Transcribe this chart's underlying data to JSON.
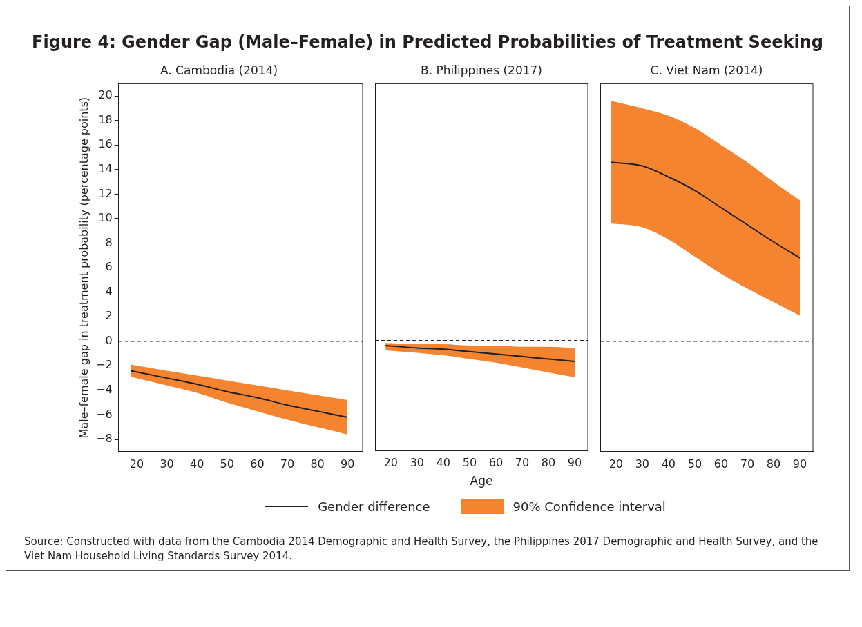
{
  "chart_data": [
    {
      "type": "line",
      "title": "A. Cambodia (2014)",
      "ylabel": "Male–female gap in treatment probability (percentage points)",
      "x": [
        18,
        30,
        40,
        50,
        60,
        70,
        80,
        90
      ],
      "xlim": [
        14,
        95
      ],
      "xticks": [
        20,
        30,
        40,
        50,
        60,
        70,
        80,
        90
      ],
      "ylim": [
        -9,
        21
      ],
      "yticks": [
        -8,
        -6,
        -4,
        -2,
        0,
        2,
        4,
        6,
        8,
        10,
        12,
        14,
        16,
        18,
        20
      ],
      "grid": false,
      "legend": "bottom",
      "marker": "none",
      "annotations": [
        "Figure 4: Gender Gap (Male–Female) in Predicted Probabilities of Treatment Seeking",
        "90% Confidence interval",
        "Source: Constructed with data from the Cambodia 2014 Demographic and Health Survey, the Philippines 2017 Demographic and Health Survey, and the Viet Nam Household Living Standards Survey 2014."
      ],
      "ref_lines": [
        {
          "axis": "y",
          "value": 0,
          "line_style": "dashed",
          "color": "#231f20"
        }
      ],
      "series": [
        {
          "name": "Gender difference",
          "color": "#231f20",
          "values": [
            -2.4,
            -3.0,
            -3.5,
            -4.1,
            -4.6,
            -5.2,
            -5.7,
            -6.2
          ],
          "lower": [
            -2.9,
            -3.6,
            -4.2,
            -5.0,
            -5.7,
            -6.4,
            -7.0,
            -7.6
          ],
          "upper": [
            -1.9,
            -2.4,
            -2.8,
            -3.2,
            -3.6,
            -4.0,
            -4.4,
            -4.8
          ]
        }
      ]
    },
    {
      "type": "line",
      "title": "B. Philippines (2017)",
      "xlabel": "Age",
      "x": [
        18,
        30,
        40,
        50,
        60,
        70,
        80,
        90
      ],
      "xlim": [
        14,
        95
      ],
      "xticks": [
        20,
        30,
        40,
        50,
        60,
        70,
        80,
        90
      ],
      "ylim": [
        -9,
        21
      ],
      "yticks": [
        -8,
        -6,
        -4,
        -2,
        0,
        2,
        4,
        6,
        8,
        10,
        12,
        14,
        16,
        18,
        20
      ],
      "grid": false,
      "marker": "none",
      "tick_labels": "x",
      "ref_lines": [
        {
          "axis": "y",
          "value": 0,
          "line_style": "dashed",
          "color": "#231f20"
        }
      ],
      "series": [
        {
          "color": "#231f20",
          "values": [
            -0.4,
            -0.6,
            -0.7,
            -0.9,
            -1.1,
            -1.3,
            -1.5,
            -1.7
          ],
          "lower": [
            -0.8,
            -1.0,
            -1.2,
            -1.5,
            -1.8,
            -2.2,
            -2.6,
            -3.0
          ],
          "upper": [
            -0.2,
            -0.3,
            -0.3,
            -0.4,
            -0.4,
            -0.5,
            -0.5,
            -0.6
          ]
        }
      ]
    },
    {
      "type": "line",
      "title": "C. Viet Nam (2014)",
      "x": [
        18,
        30,
        40,
        50,
        60,
        70,
        80,
        90
      ],
      "xlim": [
        14,
        95
      ],
      "xticks": [
        20,
        30,
        40,
        50,
        60,
        70,
        80,
        90
      ],
      "ylim": [
        -9,
        21
      ],
      "yticks": [
        -8,
        -6,
        -4,
        -2,
        0,
        2,
        4,
        6,
        8,
        10,
        12,
        14,
        16,
        18,
        20
      ],
      "grid": false,
      "marker": "none",
      "tick_labels": "x",
      "ref_lines": [
        {
          "axis": "y",
          "value": 0,
          "line_style": "dashed",
          "color": "#231f20"
        }
      ],
      "series": [
        {
          "color": "#231f20",
          "values": [
            14.6,
            14.3,
            13.4,
            12.3,
            10.9,
            9.5,
            8.1,
            6.8
          ],
          "lower": [
            9.6,
            9.3,
            8.3,
            6.9,
            5.5,
            4.3,
            3.2,
            2.1
          ],
          "upper": [
            19.6,
            19.0,
            18.4,
            17.4,
            16.0,
            14.6,
            13.0,
            11.5
          ]
        }
      ]
    }
  ]
}
